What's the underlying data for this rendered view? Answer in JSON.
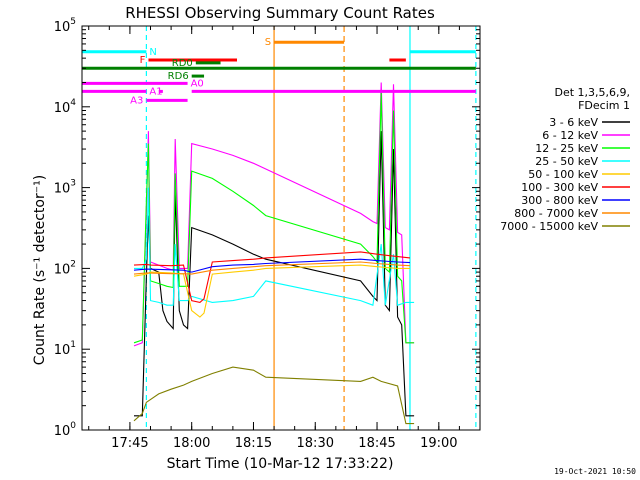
{
  "chart_data": {
    "type": "line",
    "title": "RHESSI Observing Summary Count Rates",
    "xlabel": "Start Time (10-Mar-12 17:33:22)",
    "ylabel": "Count Rate (s⁻¹ detector⁻¹)",
    "y_scale": "log",
    "xlim": [
      "17:33:22",
      "19:10:00"
    ],
    "ylim": [
      1,
      100000
    ],
    "x_ticks": [
      "17:45",
      "18:00",
      "18:15",
      "18:30",
      "18:45",
      "19:00"
    ],
    "y_ticks": [
      {
        "value": 1,
        "mantissa": "10",
        "exp": "0"
      },
      {
        "value": 10,
        "mantissa": "10",
        "exp": "1"
      },
      {
        "value": 100,
        "mantissa": "10",
        "exp": "2"
      },
      {
        "value": 1000,
        "mantissa": "10",
        "exp": "3"
      },
      {
        "value": 10000,
        "mantissa": "10",
        "exp": "4"
      },
      {
        "value": 100000,
        "mantissa": "10",
        "exp": "5"
      }
    ],
    "legend": {
      "placement": "right",
      "header": [
        "Det 1,3,5,6,9,",
        "FDecim 1"
      ],
      "entries": [
        {
          "label": "3 - 6 keV",
          "color": "#000000"
        },
        {
          "label": "6 - 12 keV",
          "color": "#ff00ff"
        },
        {
          "label": "12 - 25 keV",
          "color": "#00ff00"
        },
        {
          "label": "25 - 50 keV",
          "color": "#00ffff"
        },
        {
          "label": "50 - 100 keV",
          "color": "#ffcc00"
        },
        {
          "label": "100 - 300 keV",
          "color": "#ff0000"
        },
        {
          "label": "300 - 800 keV",
          "color": "#0000ff"
        },
        {
          "label": "800 - 7000 keV",
          "color": "#ff8800"
        },
        {
          "label": "7000 - 15000 keV",
          "color": "#808000"
        }
      ]
    },
    "series": [
      {
        "name": "3 - 6 keV",
        "color": "#000000",
        "points": [
          [
            "17:46:00",
            1.5
          ],
          [
            "17:48:00",
            1.5
          ],
          [
            "17:49:00",
            80
          ],
          [
            "17:49:30",
            450
          ],
          [
            "17:50:00",
            100
          ],
          [
            "17:52:00",
            90
          ],
          [
            "17:53:00",
            30
          ],
          [
            "17:54:00",
            22
          ],
          [
            "17:55:30",
            18
          ],
          [
            "17:56:00",
            900
          ],
          [
            "17:57:00",
            30
          ],
          [
            "17:58:00",
            20
          ],
          [
            "17:59:00",
            18
          ],
          [
            "18:00:00",
            320
          ],
          [
            "18:05:00",
            260
          ],
          [
            "18:10:00",
            200
          ],
          [
            "18:15:00",
            150
          ],
          [
            "18:18:00",
            130
          ],
          [
            "18:41:00",
            70
          ],
          [
            "18:44:00",
            45
          ],
          [
            "18:45:00",
            40
          ],
          [
            "18:46:00",
            5000
          ],
          [
            "18:47:00",
            35
          ],
          [
            "18:48:00",
            30
          ],
          [
            "18:49:00",
            3000
          ],
          [
            "18:50:00",
            25
          ],
          [
            "18:51:00",
            20
          ],
          [
            "18:52:00",
            1.5
          ],
          [
            "18:54:00",
            1.5
          ]
        ]
      },
      {
        "name": "6 - 12 keV",
        "color": "#ff00ff",
        "points": [
          [
            "17:46:00",
            11
          ],
          [
            "17:48:00",
            12
          ],
          [
            "17:49:00",
            500
          ],
          [
            "17:49:30",
            5000
          ],
          [
            "17:50:00",
            120
          ],
          [
            "17:52:00",
            110
          ],
          [
            "17:54:00",
            100
          ],
          [
            "17:55:30",
            95
          ],
          [
            "17:56:00",
            4000
          ],
          [
            "17:57:00",
            100
          ],
          [
            "17:59:00",
            100
          ],
          [
            "18:00:00",
            3500
          ],
          [
            "18:05:00",
            3000
          ],
          [
            "18:10:00",
            2500
          ],
          [
            "18:15:00",
            2000
          ],
          [
            "18:18:00",
            1700
          ],
          [
            "18:41:00",
            480
          ],
          [
            "18:44:00",
            380
          ],
          [
            "18:45:00",
            360
          ],
          [
            "18:46:00",
            20000
          ],
          [
            "18:47:00",
            320
          ],
          [
            "18:48:00",
            300
          ],
          [
            "18:49:00",
            19000
          ],
          [
            "18:50:00",
            280
          ],
          [
            "18:51:00",
            260
          ],
          [
            "18:52:00",
            12
          ],
          [
            "18:54:00",
            12
          ]
        ]
      },
      {
        "name": "12 - 25 keV",
        "color": "#00ff00",
        "points": [
          [
            "17:46:00",
            12
          ],
          [
            "17:48:00",
            13
          ],
          [
            "17:49:00",
            700
          ],
          [
            "17:49:30",
            3500
          ],
          [
            "17:50:00",
            70
          ],
          [
            "17:52:00",
            65
          ],
          [
            "17:54:00",
            60
          ],
          [
            "17:55:30",
            58
          ],
          [
            "17:56:00",
            1500
          ],
          [
            "17:57:00",
            60
          ],
          [
            "17:59:00",
            60
          ],
          [
            "18:00:00",
            1600
          ],
          [
            "18:05:00",
            1300
          ],
          [
            "18:10:00",
            900
          ],
          [
            "18:15:00",
            600
          ],
          [
            "18:18:00",
            450
          ],
          [
            "18:41:00",
            200
          ],
          [
            "18:44:00",
            140
          ],
          [
            "18:45:00",
            120
          ],
          [
            "18:46:00",
            15000
          ],
          [
            "18:47:00",
            100
          ],
          [
            "18:48:00",
            90
          ],
          [
            "18:49:00",
            9000
          ],
          [
            "18:50:00",
            80
          ],
          [
            "18:51:00",
            70
          ],
          [
            "18:52:00",
            12
          ],
          [
            "18:54:00",
            12
          ]
        ]
      },
      {
        "name": "25 - 50 keV",
        "color": "#00ffff",
        "points": [
          [
            "17:46:00",
            100
          ],
          [
            "17:48:00",
            100
          ],
          [
            "17:49:00",
            130
          ],
          [
            "17:49:30",
            1000
          ],
          [
            "17:50:00",
            40
          ],
          [
            "17:52:00",
            38
          ],
          [
            "17:54:00",
            35
          ],
          [
            "17:55:30",
            35
          ],
          [
            "17:56:00",
            200
          ],
          [
            "17:57:00",
            40
          ],
          [
            "17:59:00",
            40
          ],
          [
            "18:00:00",
            45
          ],
          [
            "18:05:00",
            38
          ],
          [
            "18:10:00",
            40
          ],
          [
            "18:15:00",
            45
          ],
          [
            "18:18:00",
            70
          ],
          [
            "18:41:00",
            40
          ],
          [
            "18:44:00",
            35
          ],
          [
            "18:46:00",
            200
          ],
          [
            "18:47:00",
            35
          ],
          [
            "18:49:00",
            150
          ],
          [
            "18:50:00",
            35
          ],
          [
            "18:52:00",
            38
          ],
          [
            "18:54:00",
            38
          ]
        ]
      },
      {
        "name": "50 - 100 keV",
        "color": "#ffcc00",
        "points": [
          [
            "17:46:00",
            80
          ],
          [
            "17:49:00",
            85
          ],
          [
            "17:50:00",
            90
          ],
          [
            "17:55:00",
            88
          ],
          [
            "17:58:00",
            85
          ],
          [
            "18:00:00",
            30
          ],
          [
            "18:02:00",
            25
          ],
          [
            "18:03:00",
            28
          ],
          [
            "18:05:00",
            85
          ],
          [
            "18:10:00",
            90
          ],
          [
            "18:15:00",
            95
          ],
          [
            "18:18:00",
            100
          ],
          [
            "18:41:00",
            110
          ],
          [
            "18:45:00",
            105
          ],
          [
            "18:50:00",
            100
          ],
          [
            "18:53:00",
            100
          ]
        ]
      },
      {
        "name": "100 - 300 keV",
        "color": "#ff0000",
        "points": [
          [
            "17:46:00",
            110
          ],
          [
            "17:49:00",
            112
          ],
          [
            "17:50:00",
            110
          ],
          [
            "17:55:00",
            108
          ],
          [
            "17:58:00",
            110
          ],
          [
            "18:00:00",
            40
          ],
          [
            "18:02:00",
            38
          ],
          [
            "18:03:00",
            42
          ],
          [
            "18:05:00",
            120
          ],
          [
            "18:10:00",
            125
          ],
          [
            "18:15:00",
            130
          ],
          [
            "18:18:00",
            135
          ],
          [
            "18:41:00",
            160
          ],
          [
            "18:45:00",
            150
          ],
          [
            "18:50:00",
            140
          ],
          [
            "18:53:00",
            135
          ]
        ]
      },
      {
        "name": "300 - 800 keV",
        "color": "#0000ff",
        "points": [
          [
            "17:46:00",
            95
          ],
          [
            "17:49:00",
            98
          ],
          [
            "17:55:00",
            96
          ],
          [
            "17:58:00",
            95
          ],
          [
            "18:00:00",
            90
          ],
          [
            "18:05:00",
            105
          ],
          [
            "18:10:00",
            110
          ],
          [
            "18:15:00",
            112
          ],
          [
            "18:18:00",
            115
          ],
          [
            "18:41:00",
            130
          ],
          [
            "18:45:00",
            125
          ],
          [
            "18:50:00",
            120
          ],
          [
            "18:53:00",
            118
          ]
        ]
      },
      {
        "name": "800 - 7000 keV",
        "color": "#ff8800",
        "points": [
          [
            "17:46:00",
            85
          ],
          [
            "17:49:00",
            88
          ],
          [
            "17:55:00",
            86
          ],
          [
            "17:58:00",
            86
          ],
          [
            "18:00:00",
            85
          ],
          [
            "18:05:00",
            95
          ],
          [
            "18:10:00",
            100
          ],
          [
            "18:15:00",
            105
          ],
          [
            "18:18:00",
            108
          ],
          [
            "18:41:00",
            120
          ],
          [
            "18:45:00",
            115
          ],
          [
            "18:50:00",
            110
          ],
          [
            "18:53:00",
            108
          ]
        ]
      },
      {
        "name": "7000 - 15000 keV",
        "color": "#808000",
        "points": [
          [
            "17:46:00",
            1.3
          ],
          [
            "17:48:00",
            1.6
          ],
          [
            "17:49:00",
            2.2
          ],
          [
            "17:52:00",
            2.8
          ],
          [
            "17:55:00",
            3.2
          ],
          [
            "17:58:00",
            3.6
          ],
          [
            "18:00:00",
            4.0
          ],
          [
            "18:05:00",
            5.0
          ],
          [
            "18:10:00",
            6.0
          ],
          [
            "18:15:00",
            5.5
          ],
          [
            "18:18:00",
            4.5
          ],
          [
            "18:41:00",
            4.0
          ],
          [
            "18:44:00",
            4.5
          ],
          [
            "18:46:00",
            4.0
          ],
          [
            "18:50:00",
            3.5
          ],
          [
            "18:52:00",
            1.2
          ],
          [
            "18:54:00",
            1.2
          ]
        ]
      }
    ],
    "flags": [
      {
        "label": "N",
        "color": "#00ffff",
        "level": 48000,
        "segments": [
          [
            "17:33:22",
            "17:49:00"
          ],
          [
            "18:53:00",
            "19:09:00"
          ]
        ]
      },
      {
        "label": "F",
        "color": "#ff0000",
        "level": 38000,
        "segments": [
          [
            "17:49:30",
            "18:11:00"
          ],
          [
            "18:48:00",
            "18:52:00"
          ]
        ]
      },
      {
        "label": "S",
        "color": "#ff8800",
        "level": 63000,
        "segments": [
          [
            "18:20:00",
            "18:37:00"
          ]
        ]
      },
      {
        "label": "RD0",
        "color": "#008000",
        "level": 35000,
        "segments": [
          [
            "18:01:00",
            "18:07:00"
          ]
        ]
      },
      {
        "label": "RD6",
        "color": "#008000",
        "level": 24000,
        "segments": [
          [
            "18:00:00",
            "18:03:00"
          ]
        ]
      },
      {
        "label": "A0",
        "color": "#ff00ff",
        "level": 19500,
        "segments": [
          [
            "17:33:22",
            "17:59:00"
          ]
        ]
      },
      {
        "label": "A1",
        "color": "#ff00ff",
        "level": 15500,
        "segments": [
          [
            "17:33:22",
            "17:49:00"
          ],
          [
            "17:52:00",
            "17:53:00"
          ],
          [
            "18:00:00",
            "19:09:00"
          ]
        ]
      },
      {
        "label": "A3",
        "color": "#ff00ff",
        "level": 12000,
        "segments": [
          [
            "17:49:00",
            "17:59:00"
          ]
        ]
      },
      {
        "label": "",
        "color": "#008000",
        "level": 30000,
        "segments": [
          [
            "17:33:22",
            "19:09:00"
          ]
        ]
      }
    ],
    "night_markers": [
      {
        "time": "17:49:00",
        "color": "#00ffff",
        "style": "dashed"
      },
      {
        "time": "18:53:00",
        "color": "#00ffff",
        "style": "solid"
      },
      {
        "time": "19:09:00",
        "color": "#00ffff",
        "style": "dashed"
      }
    ],
    "saa_markers": [
      {
        "time": "18:20:00",
        "color": "#ff8800",
        "style": "solid"
      },
      {
        "time": "18:37:00",
        "color": "#ff8800",
        "style": "dashed"
      }
    ],
    "timestamp": "19-Oct-2021 10:50"
  }
}
